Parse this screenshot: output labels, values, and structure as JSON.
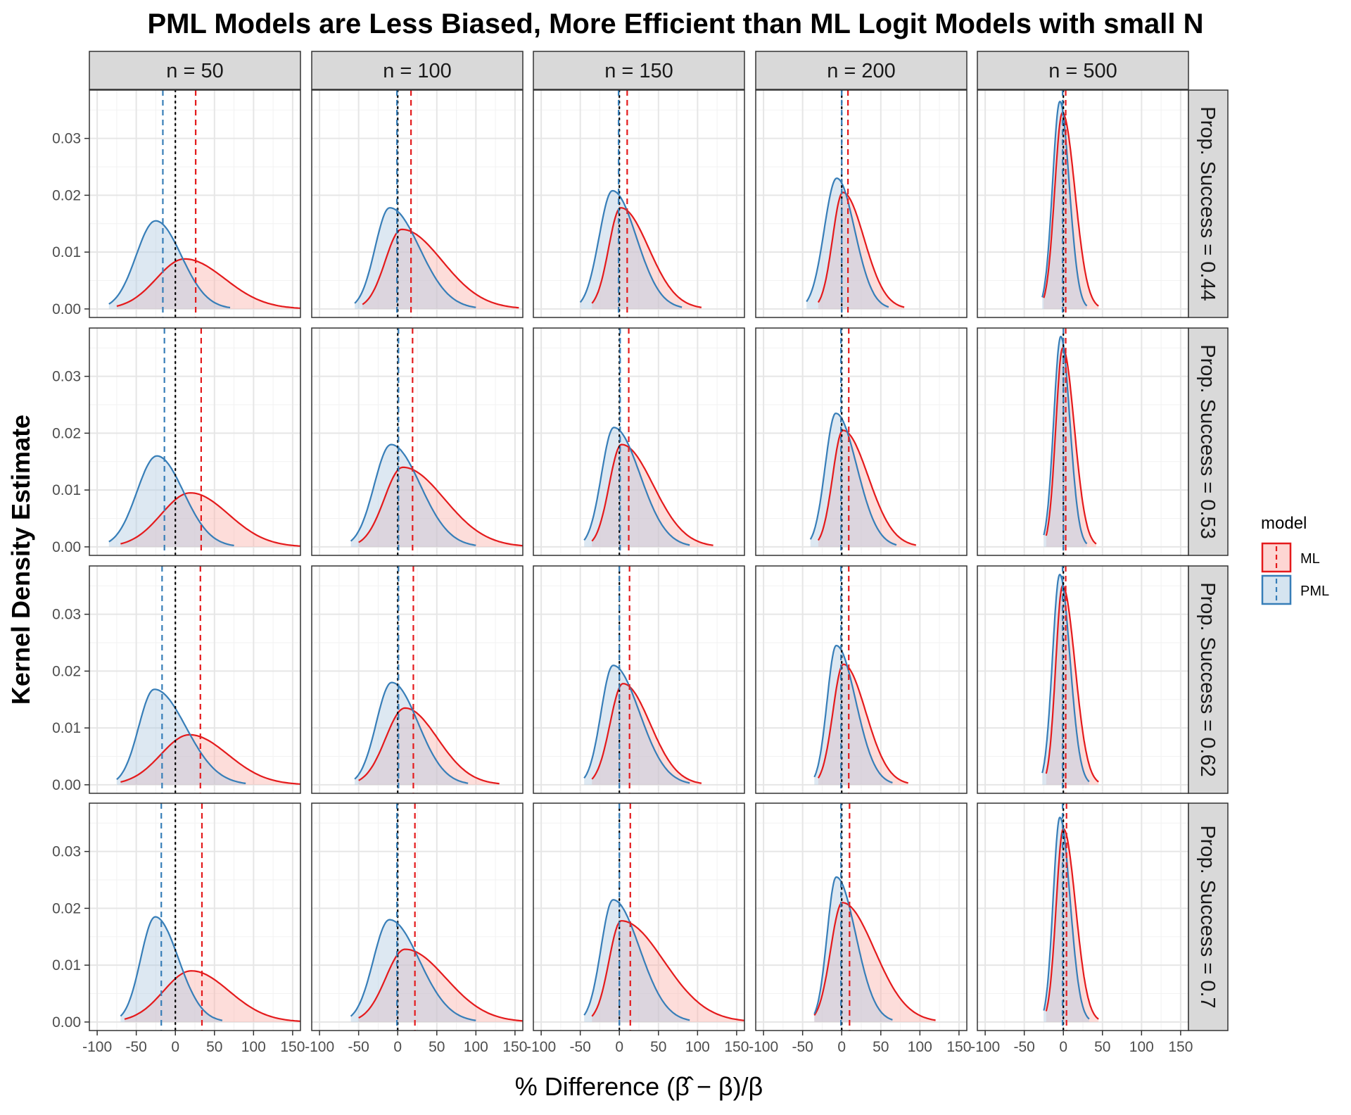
{
  "chart_data": {
    "type": "area",
    "title": "PML Models are Less Biased, More Efficient than ML Logit Models with small N",
    "xlabel": "% Difference  (β̂ − β)/β",
    "ylabel": "Kernel Density Estimate",
    "xlim": [
      -110,
      160
    ],
    "ylim": [
      -0.0015,
      0.0385
    ],
    "x_ticks": [
      -100,
      -50,
      0,
      50,
      100,
      150
    ],
    "y_ticks": [
      0.0,
      0.01,
      0.02,
      0.03
    ],
    "x_tick_labels": [
      "-100",
      "-50",
      "0",
      "50",
      "100",
      "150"
    ],
    "y_tick_labels": [
      "0.00",
      "0.01",
      "0.02",
      "0.03"
    ],
    "grid": true,
    "col_facets": [
      "n = 50",
      "n = 100",
      "n = 150",
      "n = 200",
      "n = 500"
    ],
    "row_facets": [
      "Prop. Success = 0.44",
      "Prop. Success = 0.53",
      "Prop. Success = 0.62",
      "Prop. Success = 0.7"
    ],
    "legend": {
      "title": "model",
      "placement": "right",
      "entries": [
        "ML",
        "PML"
      ]
    },
    "colors": {
      "ML": "#E41A1C",
      "PML": "#377EB8",
      "ML_fill": "#FBB4AE",
      "PML_fill": "#B3CDE3",
      "zero_line": "#000000"
    },
    "reference_line_x": 0,
    "series": [
      {
        "name": "ML",
        "panels": [
          [
            {
              "peak": 0.0088,
              "mean": 26,
              "min": -75,
              "max": 160
            },
            {
              "peak": 0.014,
              "mean": 17,
              "min": -45,
              "max": 155
            },
            {
              "peak": 0.0178,
              "mean": 10,
              "min": -35,
              "max": 105
            },
            {
              "peak": 0.0205,
              "mean": 8,
              "min": -30,
              "max": 80
            },
            {
              "peak": 0.0345,
              "mean": 3,
              "min": -25,
              "max": 45
            }
          ],
          [
            {
              "peak": 0.0095,
              "mean": 33,
              "min": -70,
              "max": 160
            },
            {
              "peak": 0.014,
              "mean": 19,
              "min": -50,
              "max": 160
            },
            {
              "peak": 0.018,
              "mean": 12,
              "min": -35,
              "max": 120
            },
            {
              "peak": 0.0205,
              "mean": 9,
              "min": -30,
              "max": 95
            },
            {
              "peak": 0.035,
              "mean": 3,
              "min": -22,
              "max": 42
            }
          ],
          [
            {
              "peak": 0.0088,
              "mean": 32,
              "min": -70,
              "max": 160
            },
            {
              "peak": 0.0135,
              "mean": 20,
              "min": -50,
              "max": 130
            },
            {
              "peak": 0.0178,
              "mean": 13,
              "min": -35,
              "max": 105
            },
            {
              "peak": 0.0212,
              "mean": 9,
              "min": -30,
              "max": 85
            },
            {
              "peak": 0.035,
              "mean": 3,
              "min": -22,
              "max": 45
            }
          ],
          [
            {
              "peak": 0.009,
              "mean": 34,
              "min": -65,
              "max": 160
            },
            {
              "peak": 0.0128,
              "mean": 22,
              "min": -50,
              "max": 160
            },
            {
              "peak": 0.0178,
              "mean": 14,
              "min": -35,
              "max": 160
            },
            {
              "peak": 0.021,
              "mean": 10,
              "min": -35,
              "max": 120
            },
            {
              "peak": 0.034,
              "mean": 4,
              "min": -22,
              "max": 45
            }
          ]
        ]
      },
      {
        "name": "PML",
        "panels": [
          [
            {
              "peak": 0.0155,
              "mean": -16,
              "min": -85,
              "max": 70
            },
            {
              "peak": 0.0178,
              "mean": -1,
              "min": -55,
              "max": 100
            },
            {
              "peak": 0.0208,
              "mean": -1,
              "min": -50,
              "max": 80
            },
            {
              "peak": 0.023,
              "mean": 0,
              "min": -45,
              "max": 60
            },
            {
              "peak": 0.0365,
              "mean": -1,
              "min": -27,
              "max": 30
            }
          ],
          [
            {
              "peak": 0.016,
              "mean": -14,
              "min": -85,
              "max": 75
            },
            {
              "peak": 0.018,
              "mean": 1,
              "min": -60,
              "max": 100
            },
            {
              "peak": 0.021,
              "mean": 1,
              "min": -45,
              "max": 90
            },
            {
              "peak": 0.0235,
              "mean": -1,
              "min": -40,
              "max": 70
            },
            {
              "peak": 0.037,
              "mean": 0,
              "min": -25,
              "max": 30
            }
          ],
          [
            {
              "peak": 0.0168,
              "mean": -17,
              "min": -75,
              "max": 90
            },
            {
              "peak": 0.018,
              "mean": 1,
              "min": -55,
              "max": 90
            },
            {
              "peak": 0.021,
              "mean": 0,
              "min": -45,
              "max": 90
            },
            {
              "peak": 0.0245,
              "mean": -1,
              "min": -35,
              "max": 65
            },
            {
              "peak": 0.037,
              "mean": -1,
              "min": -27,
              "max": 33
            }
          ],
          [
            {
              "peak": 0.0185,
              "mean": -18,
              "min": -70,
              "max": 60
            },
            {
              "peak": 0.018,
              "mean": -1,
              "min": -60,
              "max": 100
            },
            {
              "peak": 0.0215,
              "mean": 0,
              "min": -45,
              "max": 90
            },
            {
              "peak": 0.0255,
              "mean": -1,
              "min": -35,
              "max": 65
            },
            {
              "peak": 0.036,
              "mean": -1,
              "min": -25,
              "max": 33
            }
          ]
        ]
      }
    ]
  }
}
